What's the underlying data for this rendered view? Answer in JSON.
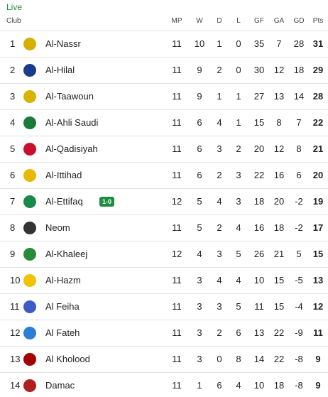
{
  "live_label": "Live",
  "table": {
    "columns": [
      "Club",
      "MP",
      "W",
      "D",
      "L",
      "GF",
      "GA",
      "GD",
      "Pts"
    ],
    "rows": [
      {
        "position": 1,
        "club": "Al-Nassr",
        "stats": [
          11,
          10,
          1,
          0,
          35,
          7,
          28,
          31
        ]
      },
      {
        "position": 2,
        "club": "Al-Hilal",
        "stats": [
          11,
          9,
          2,
          0,
          30,
          12,
          18,
          29
        ]
      },
      {
        "position": 3,
        "club": "Al-Taawoun",
        "stats": [
          11,
          9,
          1,
          1,
          27,
          13,
          14,
          28
        ]
      },
      {
        "position": 4,
        "club": "Al-Ahli Saudi",
        "stats": [
          11,
          6,
          4,
          1,
          15,
          8,
          7,
          22
        ]
      },
      {
        "position": 5,
        "club": "Al-Qadisiyah",
        "stats": [
          11,
          6,
          3,
          2,
          20,
          12,
          8,
          21
        ]
      },
      {
        "position": 6,
        "club": "Al-Ittihad",
        "stats": [
          11,
          6,
          2,
          3,
          22,
          16,
          6,
          20
        ]
      },
      {
        "position": 7,
        "club": "Al-Ettifaq",
        "live_score": "1-0",
        "stats": [
          12,
          5,
          4,
          3,
          18,
          20,
          -2,
          19
        ]
      },
      {
        "position": 8,
        "club": "Neom",
        "stats": [
          11,
          5,
          2,
          4,
          16,
          18,
          -2,
          17
        ]
      },
      {
        "position": 9,
        "club": "Al-Khaleej",
        "stats": [
          12,
          4,
          3,
          5,
          26,
          21,
          5,
          15
        ]
      },
      {
        "position": 10,
        "club": "Al-Hazm",
        "stats": [
          11,
          3,
          4,
          4,
          10,
          15,
          -5,
          13
        ]
      },
      {
        "position": 11,
        "club": "Al Feiha",
        "stats": [
          11,
          3,
          3,
          5,
          11,
          15,
          -4,
          12
        ]
      },
      {
        "position": 12,
        "club": "Al Fateh",
        "stats": [
          11,
          3,
          2,
          6,
          13,
          22,
          -9,
          11
        ]
      },
      {
        "position": 13,
        "club": "Al Kholood",
        "stats": [
          11,
          3,
          0,
          8,
          14,
          22,
          -8,
          9
        ]
      },
      {
        "position": 14,
        "club": "Damac",
        "stats": [
          11,
          1,
          6,
          4,
          10,
          18,
          -8,
          9
        ]
      }
    ]
  }
}
